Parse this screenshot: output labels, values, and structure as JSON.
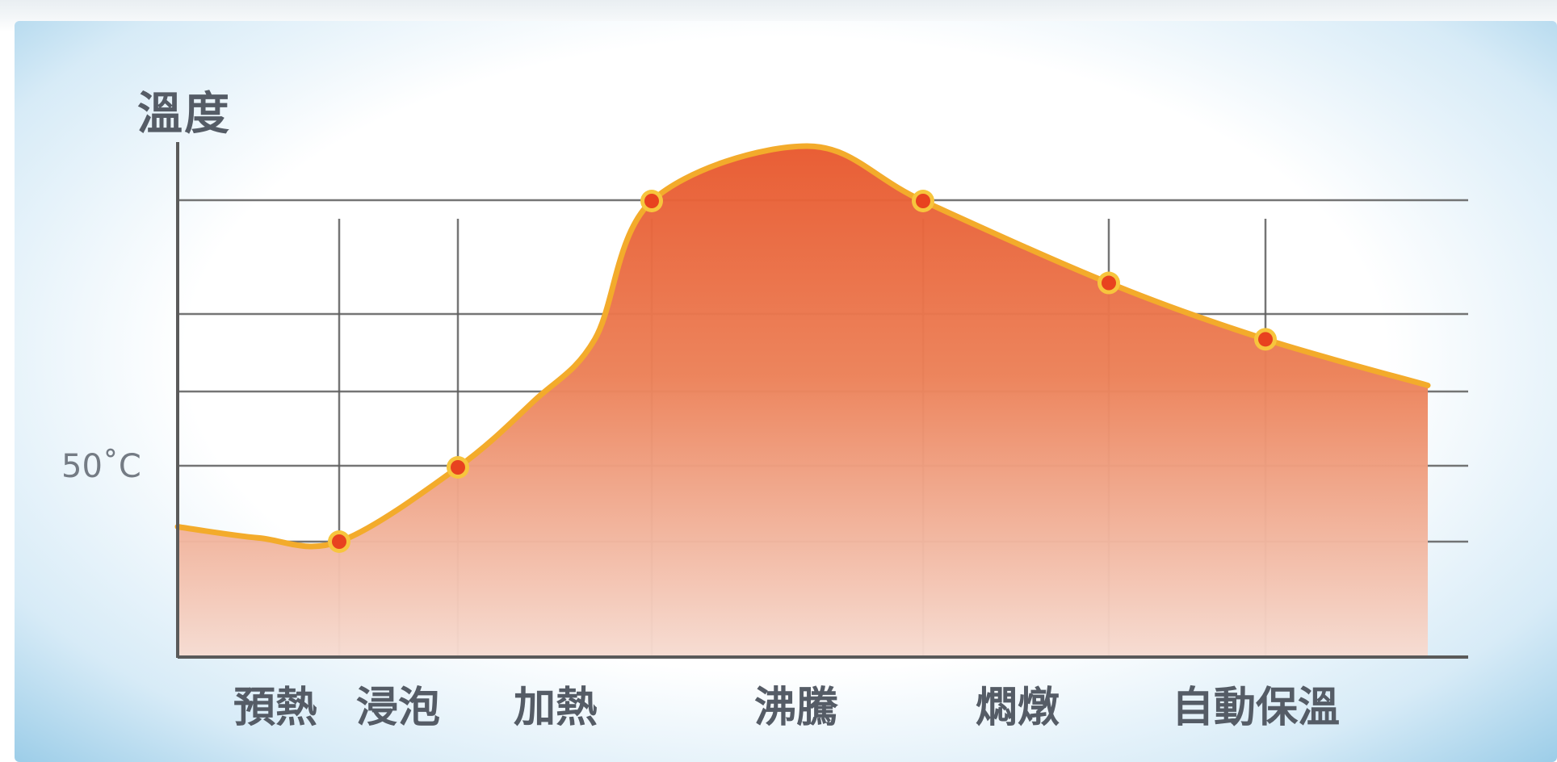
{
  "chart_data": {
    "type": "area",
    "ylabel": "溫度",
    "ytick_label": "50˚C",
    "categories": [
      "預熱",
      "浸泡",
      "加熱",
      "沸騰",
      "燜燉",
      "自動保溫"
    ],
    "curve": [
      {
        "x": 0.0,
        "y": 0.2
      },
      {
        "x": 0.5,
        "y": 0.05
      },
      {
        "x": 1.0,
        "y": 0.0
      },
      {
        "x": 1.37,
        "y": 1.0
      },
      {
        "x": 2.0,
        "y": 2.3
      },
      {
        "x": 2.5,
        "y": 3.5
      },
      {
        "x": 2.97,
        "y": 6.2
      },
      {
        "x": 3.8,
        "y": 7.0
      },
      {
        "x": 4.42,
        "y": 6.2
      },
      {
        "x": 5.0,
        "y": 4.6
      },
      {
        "x": 5.5,
        "y": 3.5
      },
      {
        "x": 6.4,
        "y": 2.6
      }
    ],
    "markers": [
      {
        "x": 1.0,
        "y": 0.0
      },
      {
        "x": 1.37,
        "y": 1.0
      },
      {
        "x": 2.97,
        "y": 6.2
      },
      {
        "x": 4.42,
        "y": 6.2
      },
      {
        "x": 5.0,
        "y": 4.6
      },
      {
        "x": 5.5,
        "y": 3.5
      }
    ],
    "grid": true,
    "colors": {
      "line": "#f3ab2b",
      "fill_top": "#e8592f",
      "fill_bottom": "#f6dcd2",
      "marker_fill": "#e8421f",
      "marker_ring": "#f7c53d",
      "grid": "#5d5d5d",
      "text": "#555c66"
    }
  }
}
